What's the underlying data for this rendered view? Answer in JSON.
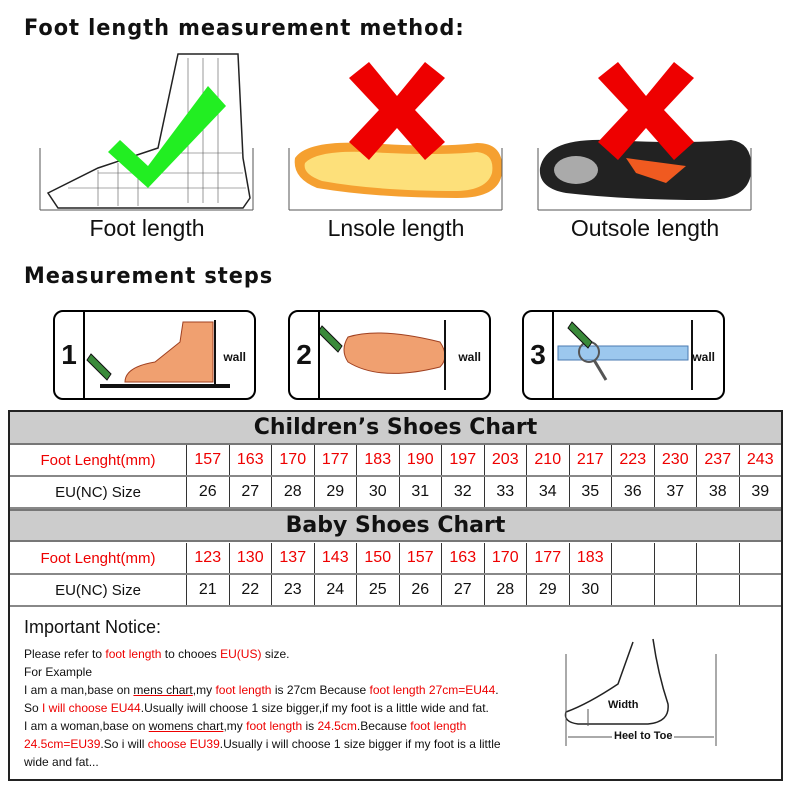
{
  "title": "Foot length measurement method:",
  "methods": [
    {
      "label": "Foot length",
      "mark": "check"
    },
    {
      "label": "Lnsole length",
      "mark": "cross"
    },
    {
      "label": "Outsole length",
      "mark": "cross"
    }
  ],
  "steps_title": "Measurement steps",
  "steps": [
    {
      "num": "1",
      "wall": "wall"
    },
    {
      "num": "2",
      "wall": "wall"
    },
    {
      "num": "3",
      "wall": "wall"
    }
  ],
  "children": {
    "title": "Children’s Shoes Chart",
    "row1_label": "Foot Lenght(mm)",
    "row2_label": "EU(NC) Size",
    "lengths": [
      "157",
      "163",
      "170",
      "177",
      "183",
      "190",
      "197",
      "203",
      "210",
      "217",
      "223",
      "230",
      "237",
      "243"
    ],
    "sizes": [
      "26",
      "27",
      "28",
      "29",
      "30",
      "31",
      "32",
      "33",
      "34",
      "35",
      "36",
      "37",
      "38",
      "39"
    ]
  },
  "baby": {
    "title": "Baby Shoes Chart",
    "row1_label": "Foot Lenght(mm)",
    "row2_label": "EU(NC) Size",
    "lengths": [
      "123",
      "130",
      "137",
      "143",
      "150",
      "157",
      "163",
      "170",
      "177",
      "183",
      "",
      "",
      "",
      ""
    ],
    "sizes": [
      "21",
      "22",
      "23",
      "24",
      "25",
      "26",
      "27",
      "28",
      "29",
      "30",
      "",
      "",
      "",
      ""
    ]
  },
  "notice": {
    "title": "Important Notice:",
    "l1": [
      "Please refer to ",
      "foot length",
      " to chooes ",
      "EU(US)",
      " size."
    ],
    "l2": "For Example",
    "l3": [
      "I am a man,base on ",
      "mens chart",
      ",my ",
      "foot length",
      " is 27cm Because ",
      "foot length 27cm=EU44",
      "."
    ],
    "l4": [
      "So ",
      "I will choose EU44",
      ".Usually iwill choose 1 size bigger,if my foot is a little wide and fat."
    ],
    "l5": [
      "I am a woman,base on ",
      "womens chart",
      ",my ",
      "foot length",
      " is ",
      "24.5cm",
      ".Because ",
      "foot length"
    ],
    "l6": [
      "24.5cm=EU39",
      ".So i will ",
      "choose EU39",
      ".Usually i will choose 1 size bigger if my foot is a little"
    ],
    "l7": "wide and fat...",
    "width_label": "Width",
    "heel_label": "Heel to Toe"
  },
  "colors": {
    "accent": "#ee0000",
    "check": "#22ee22",
    "header_bg": "#cccccc"
  }
}
